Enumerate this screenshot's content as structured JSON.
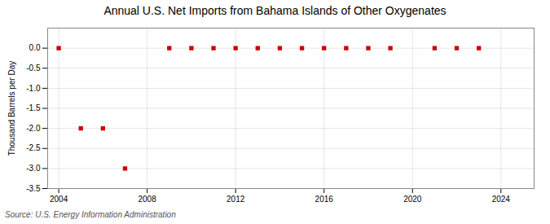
{
  "chart_data": {
    "type": "scatter",
    "title": "Annual U.S. Net Imports from Bahama Islands of Other Oxygenates",
    "ylabel": "Thousand Barrels per Day",
    "source": "Source: U.S. Energy Information Administration",
    "x": [
      2004,
      2005,
      2006,
      2007,
      2009,
      2010,
      2011,
      2012,
      2013,
      2014,
      2015,
      2016,
      2017,
      2018,
      2019,
      2021,
      2022,
      2023
    ],
    "values": [
      0.0,
      -2.0,
      -2.0,
      -3.0,
      0.0,
      0.0,
      0.0,
      0.0,
      0.0,
      0.0,
      0.0,
      0.0,
      0.0,
      0.0,
      0.0,
      0.0,
      0.0,
      0.0
    ],
    "color": "#cc0000",
    "marker": "square",
    "xlim": [
      2003.5,
      2025.5
    ],
    "xticks": [
      2004,
      2008,
      2012,
      2016,
      2020,
      2024
    ],
    "ylim": [
      -3.5,
      0.5
    ],
    "yticks": [
      {
        "value": 0.0,
        "label": "0.0"
      },
      -0.5,
      {
        "value": -1.0,
        "label": "-1.0"
      },
      -1.5,
      {
        "value": -2.0,
        "label": "-2.0"
      },
      -2.5,
      {
        "value": -3.0,
        "label": "-3.0"
      },
      -3.5
    ],
    "grid": true
  }
}
